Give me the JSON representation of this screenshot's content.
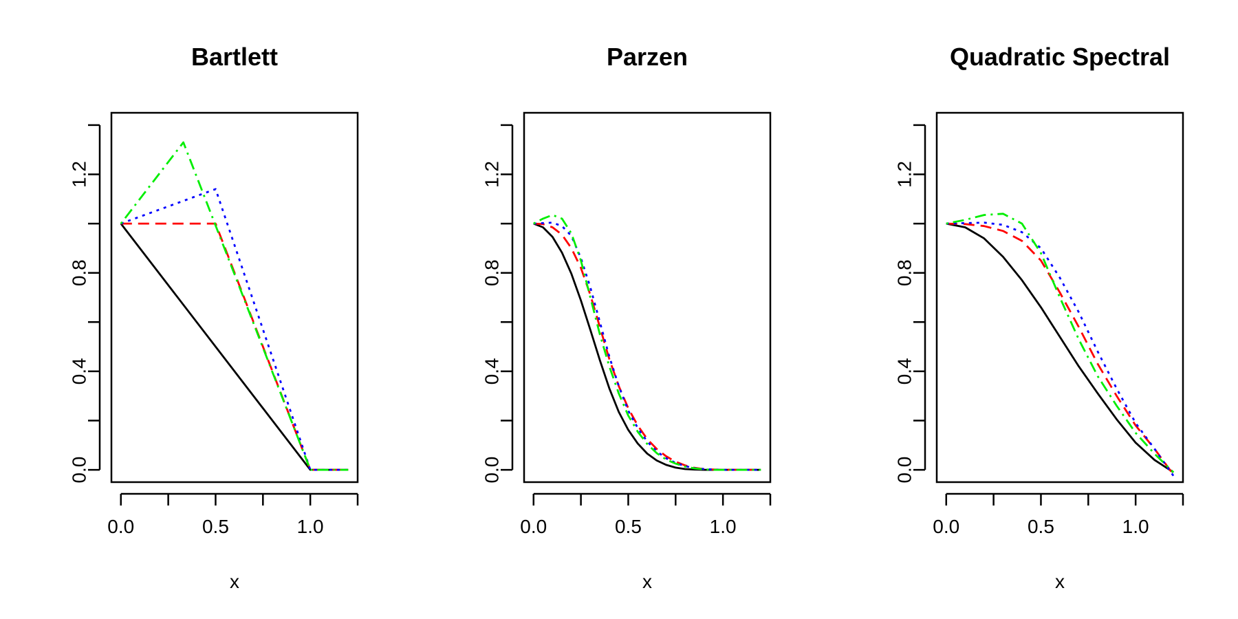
{
  "chart_data": [
    {
      "type": "line",
      "title": "Bartlett",
      "xlabel": "x",
      "ylabel": "",
      "xlim": [
        -0.05,
        1.25
      ],
      "ylim": [
        -0.05,
        1.45
      ],
      "xticks": [
        0.0,
        0.25,
        0.5,
        0.75,
        1.0,
        1.25
      ],
      "xtick_labels": [
        "0.0",
        "",
        "0.5",
        "",
        "1.0",
        ""
      ],
      "yticks": [
        0.0,
        0.2,
        0.4,
        0.6,
        0.8,
        1.0,
        1.2,
        1.4
      ],
      "ytick_labels": [
        "0.0",
        "",
        "0.4",
        "",
        "0.8",
        "",
        "1.2",
        ""
      ],
      "grid": false,
      "series": [
        {
          "color": "#000000",
          "dash": "solid",
          "x": [
            0,
            1,
            1.2
          ],
          "y": [
            1,
            0,
            0
          ]
        },
        {
          "color": "#ff0000",
          "dash": "dashed",
          "x": [
            0,
            0.5,
            1,
            1.2
          ],
          "y": [
            1,
            1,
            0,
            0
          ]
        },
        {
          "color": "#0000ff",
          "dash": "dotted",
          "x": [
            0,
            0.5,
            1,
            1.2
          ],
          "y": [
            1,
            1.14,
            0,
            0
          ]
        },
        {
          "color": "#00ee00",
          "dash": "dotdash",
          "x": [
            0,
            0.33,
            1,
            1.2
          ],
          "y": [
            1,
            1.33,
            0,
            0
          ]
        }
      ]
    },
    {
      "type": "line",
      "title": "Parzen",
      "xlabel": "x",
      "ylabel": "",
      "xlim": [
        -0.05,
        1.25
      ],
      "ylim": [
        -0.05,
        1.45
      ],
      "xticks": [
        0.0,
        0.25,
        0.5,
        0.75,
        1.0,
        1.25
      ],
      "xtick_labels": [
        "0.0",
        "",
        "0.5",
        "",
        "1.0",
        ""
      ],
      "yticks": [
        0.0,
        0.2,
        0.4,
        0.6,
        0.8,
        1.0,
        1.2,
        1.4
      ],
      "ytick_labels": [
        "0.0",
        "",
        "0.4",
        "",
        "0.8",
        "",
        "1.2",
        ""
      ],
      "grid": false,
      "series": [
        {
          "color": "#000000",
          "dash": "solid",
          "x": [
            0,
            0.05,
            0.1,
            0.15,
            0.2,
            0.25,
            0.3,
            0.35,
            0.4,
            0.45,
            0.5,
            0.55,
            0.6,
            0.65,
            0.7,
            0.75,
            0.8,
            0.85,
            0.9,
            0.95,
            1.0,
            1.1,
            1.2
          ],
          "y": [
            1,
            0.985,
            0.946,
            0.882,
            0.796,
            0.688,
            0.568,
            0.445,
            0.331,
            0.235,
            0.162,
            0.107,
            0.066,
            0.038,
            0.02,
            0.009,
            0.003,
            0.001,
            0,
            0,
            0,
            0,
            0
          ]
        },
        {
          "color": "#ff0000",
          "dash": "dashed",
          "x": [
            0,
            0.05,
            0.1,
            0.15,
            0.2,
            0.25,
            0.3,
            0.35,
            0.4,
            0.45,
            0.5,
            0.55,
            0.6,
            0.65,
            0.7,
            0.75,
            0.8,
            0.85,
            0.9,
            0.95,
            1.0,
            1.1,
            1.2
          ],
          "y": [
            1,
            0.998,
            0.985,
            0.955,
            0.9,
            0.82,
            0.71,
            0.58,
            0.45,
            0.34,
            0.25,
            0.18,
            0.125,
            0.085,
            0.055,
            0.033,
            0.018,
            0.008,
            0.003,
            0.001,
            0,
            0,
            0
          ]
        },
        {
          "color": "#0000ff",
          "dash": "dotted",
          "x": [
            0,
            0.05,
            0.1,
            0.15,
            0.2,
            0.25,
            0.3,
            0.35,
            0.4,
            0.45,
            0.5,
            0.55,
            0.6,
            0.65,
            0.7,
            0.75,
            0.8,
            0.85,
            0.9,
            0.95,
            1.0,
            1.1,
            1.2
          ],
          "y": [
            1,
            1.002,
            1.004,
            0.99,
            0.95,
            0.86,
            0.74,
            0.6,
            0.46,
            0.34,
            0.24,
            0.17,
            0.115,
            0.075,
            0.047,
            0.028,
            0.015,
            0.007,
            0.003,
            0.001,
            0,
            0,
            0
          ]
        },
        {
          "color": "#00ee00",
          "dash": "dotdash",
          "x": [
            0,
            0.05,
            0.1,
            0.15,
            0.2,
            0.25,
            0.3,
            0.35,
            0.4,
            0.45,
            0.5,
            0.55,
            0.6,
            0.65,
            0.7,
            0.75,
            0.8,
            0.85,
            0.9,
            0.95,
            1.0,
            1.1,
            1.2
          ],
          "y": [
            1,
            1.02,
            1.035,
            1.02,
            0.96,
            0.85,
            0.7,
            0.55,
            0.42,
            0.31,
            0.22,
            0.155,
            0.105,
            0.068,
            0.042,
            0.025,
            0.013,
            0.006,
            0.002,
            0,
            0,
            0,
            0
          ]
        }
      ]
    },
    {
      "type": "line",
      "title": "Quadratic Spectral",
      "xlabel": "x",
      "ylabel": "",
      "xlim": [
        -0.05,
        1.25
      ],
      "ylim": [
        -0.05,
        1.45
      ],
      "xticks": [
        0.0,
        0.25,
        0.5,
        0.75,
        1.0,
        1.25
      ],
      "xtick_labels": [
        "0.0",
        "",
        "0.5",
        "",
        "1.0",
        ""
      ],
      "yticks": [
        0.0,
        0.2,
        0.4,
        0.6,
        0.8,
        1.0,
        1.2,
        1.4
      ],
      "ytick_labels": [
        "0.0",
        "",
        "0.4",
        "",
        "0.8",
        "",
        "1.2",
        ""
      ],
      "grid": false,
      "series": [
        {
          "color": "#000000",
          "dash": "solid",
          "x": [
            0,
            0.1,
            0.2,
            0.3,
            0.4,
            0.5,
            0.6,
            0.7,
            0.8,
            0.9,
            1.0,
            1.1,
            1.2
          ],
          "y": [
            1,
            0.985,
            0.94,
            0.865,
            0.77,
            0.66,
            0.54,
            0.42,
            0.31,
            0.205,
            0.11,
            0.04,
            -0.01
          ]
        },
        {
          "color": "#ff0000",
          "dash": "dashed",
          "x": [
            0,
            0.1,
            0.2,
            0.3,
            0.4,
            0.5,
            0.6,
            0.7,
            0.8,
            0.9,
            1.0,
            1.1,
            1.2
          ],
          "y": [
            1,
            0.998,
            0.99,
            0.97,
            0.93,
            0.85,
            0.72,
            0.58,
            0.43,
            0.3,
            0.18,
            0.085,
            -0.02
          ]
        },
        {
          "color": "#0000ff",
          "dash": "dotted",
          "x": [
            0,
            0.1,
            0.2,
            0.3,
            0.4,
            0.5,
            0.6,
            0.7,
            0.8,
            0.9,
            1.0,
            1.1,
            1.2
          ],
          "y": [
            1,
            1.002,
            1.004,
            0.995,
            0.965,
            0.9,
            0.78,
            0.64,
            0.48,
            0.33,
            0.19,
            0.085,
            -0.025
          ]
        },
        {
          "color": "#00ee00",
          "dash": "dotdash",
          "x": [
            0,
            0.1,
            0.2,
            0.3,
            0.4,
            0.5,
            0.6,
            0.7,
            0.8,
            0.9,
            1.0,
            1.1,
            1.2
          ],
          "y": [
            1,
            1.015,
            1.035,
            1.04,
            1.0,
            0.88,
            0.7,
            0.53,
            0.38,
            0.26,
            0.15,
            0.065,
            -0.01
          ]
        }
      ]
    }
  ]
}
